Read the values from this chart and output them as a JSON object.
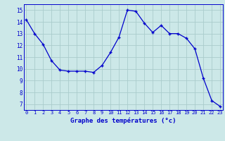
{
  "hours": [
    0,
    1,
    2,
    3,
    4,
    5,
    6,
    7,
    8,
    9,
    10,
    11,
    12,
    13,
    14,
    15,
    16,
    17,
    18,
    19,
    20,
    21,
    22,
    23
  ],
  "temps": [
    14.2,
    13.0,
    12.1,
    10.7,
    9.9,
    9.8,
    9.8,
    9.8,
    9.7,
    10.3,
    11.4,
    12.7,
    15.0,
    14.9,
    13.9,
    13.1,
    13.7,
    13.0,
    13.0,
    12.6,
    11.7,
    9.2,
    7.3,
    6.8
  ],
  "line_color": "#0000cc",
  "marker": "+",
  "bg_color": "#cce8e8",
  "grid_color": "#aacccc",
  "xlabel": "Graphe des températures (°c)",
  "xlabel_color": "#0000cc",
  "tick_color": "#0000cc",
  "ylim": [
    6.5,
    15.5
  ],
  "yticks": [
    7,
    8,
    9,
    10,
    11,
    12,
    13,
    14,
    15
  ],
  "xticks": [
    0,
    1,
    2,
    3,
    4,
    5,
    6,
    7,
    8,
    9,
    10,
    11,
    12,
    13,
    14,
    15,
    16,
    17,
    18,
    19,
    20,
    21,
    22,
    23
  ],
  "figsize": [
    3.2,
    2.0
  ],
  "dpi": 100
}
